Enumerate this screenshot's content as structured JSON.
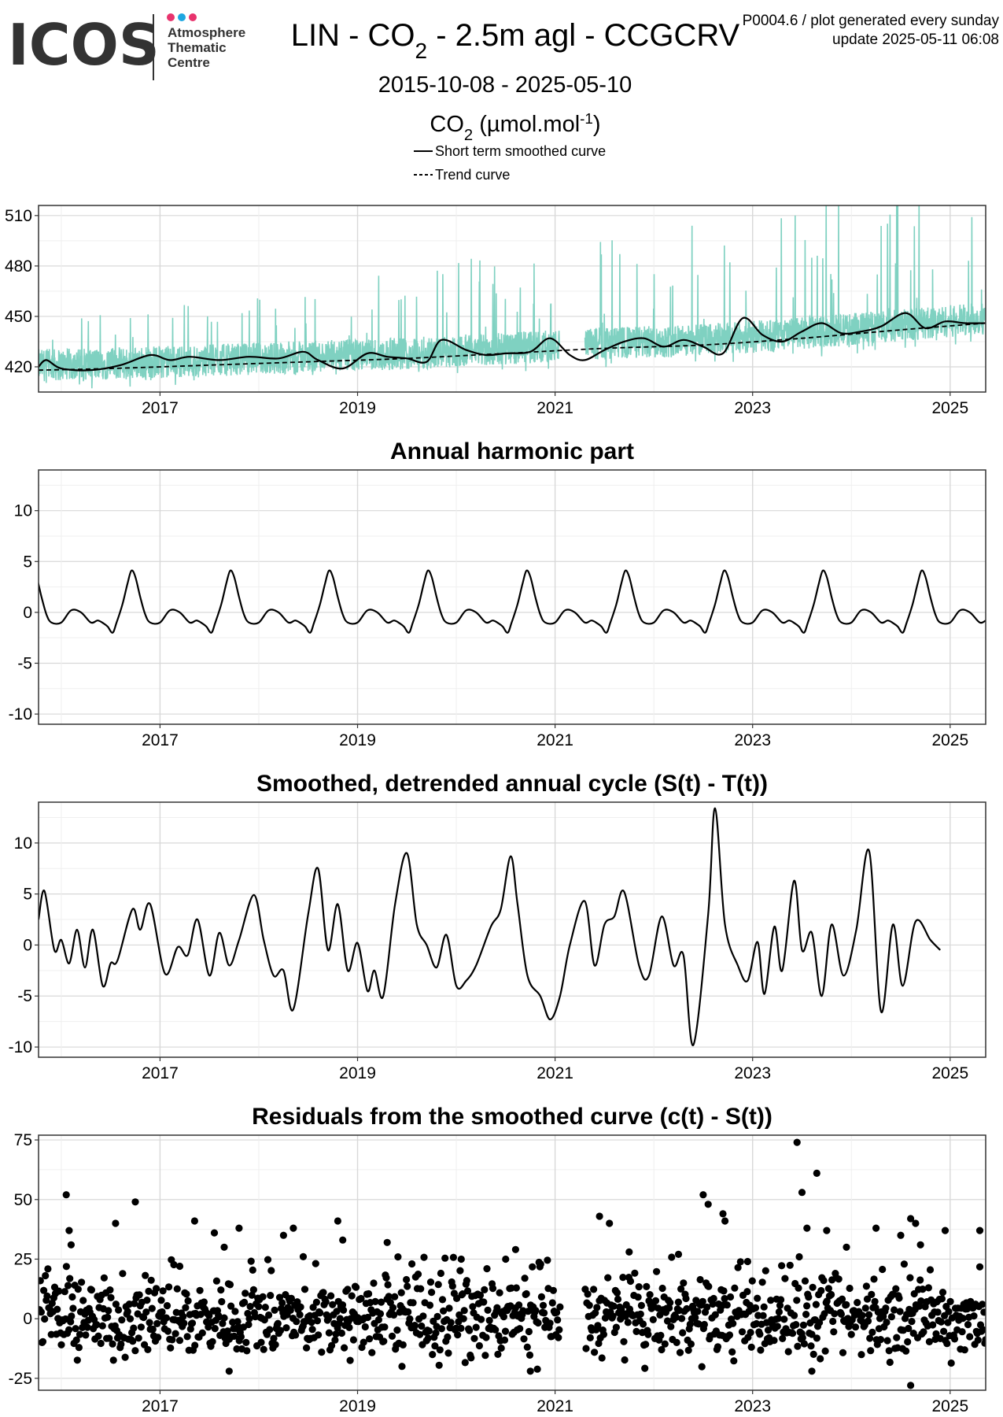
{
  "header": {
    "logo_text": "ICOS",
    "logo_sub": [
      "Atmosphere",
      "Thematic",
      "Centre"
    ],
    "logo_dot_colors": [
      "#e8336d",
      "#1ea7e1",
      "#e8336d"
    ],
    "title": "LIN - CO2 - 2.5m agl - CCGCRV",
    "date_range": "2015-10-08 - 2025-05-10",
    "meta_line1": "P0004.6 / plot generated every sunday",
    "meta_line2": "update  2025-05-11 06:08",
    "units": "CO2 (µmol.mol-1)",
    "legend": [
      "Short term smoothed curve",
      "Trend curve"
    ]
  },
  "colors": {
    "raw_series": "#7fd1c1",
    "curve": "#000000",
    "grid": "#d8d8d8",
    "grid_minor": "#efefef",
    "panel_border": "#333333"
  },
  "chart_data": [
    {
      "type": "line",
      "id": "co2",
      "title": "",
      "x_range": [
        2015.77,
        2025.36
      ],
      "ylim": [
        405,
        516
      ],
      "yticks": [
        420,
        450,
        480,
        510
      ],
      "xticks": [
        2017,
        2019,
        2021,
        2023,
        2025
      ],
      "grid": true,
      "series": [
        {
          "name": "Raw CO2",
          "style": "raw",
          "data_gap": [
            2021.05,
            2021.3
          ],
          "baseline": [
            [
              2015.77,
              418
            ],
            [
              2016.5,
              419
            ],
            [
              2017.5,
              421
            ],
            [
              2018.5,
              423
            ],
            [
              2019.5,
              425
            ],
            [
              2020.5,
              428
            ],
            [
              2021.5,
              431
            ],
            [
              2022.5,
              433
            ],
            [
              2023.5,
              437
            ],
            [
              2024.5,
              442
            ],
            [
              2025.36,
              446
            ]
          ],
          "amplitude": 12,
          "spike_max": 95
        },
        {
          "name": "Short term smoothed curve",
          "style": "solid",
          "points": [
            [
              2015.77,
              420
            ],
            [
              2015.85,
              424
            ],
            [
              2016.0,
              419
            ],
            [
              2016.3,
              418
            ],
            [
              2016.6,
              421
            ],
            [
              2016.9,
              427
            ],
            [
              2017.1,
              424
            ],
            [
              2017.3,
              426
            ],
            [
              2017.6,
              424
            ],
            [
              2017.9,
              426
            ],
            [
              2018.2,
              425
            ],
            [
              2018.45,
              429
            ],
            [
              2018.6,
              424
            ],
            [
              2018.85,
              419
            ],
            [
              2019.1,
              428
            ],
            [
              2019.3,
              426
            ],
            [
              2019.5,
              425
            ],
            [
              2019.7,
              423
            ],
            [
              2019.85,
              436
            ],
            [
              2020.1,
              430
            ],
            [
              2020.3,
              427
            ],
            [
              2020.5,
              428
            ],
            [
              2020.75,
              429
            ],
            [
              2020.95,
              437
            ],
            [
              2021.15,
              427
            ],
            [
              2021.3,
              424
            ],
            [
              2021.5,
              430
            ],
            [
              2021.7,
              435
            ],
            [
              2021.9,
              437
            ],
            [
              2022.1,
              432
            ],
            [
              2022.3,
              436
            ],
            [
              2022.5,
              432
            ],
            [
              2022.7,
              428
            ],
            [
              2022.9,
              449
            ],
            [
              2023.1,
              439
            ],
            [
              2023.3,
              435
            ],
            [
              2023.5,
              441
            ],
            [
              2023.7,
              446
            ],
            [
              2023.9,
              440
            ],
            [
              2024.1,
              441
            ],
            [
              2024.3,
              444
            ],
            [
              2024.55,
              452
            ],
            [
              2024.75,
              443
            ],
            [
              2024.95,
              447
            ],
            [
              2025.15,
              446
            ],
            [
              2025.36,
              446
            ]
          ]
        },
        {
          "name": "Trend curve",
          "style": "dashed",
          "points": [
            [
              2015.77,
              418
            ],
            [
              2016.5,
              419
            ],
            [
              2017.5,
              421
            ],
            [
              2018.5,
              423
            ],
            [
              2019.5,
              425
            ],
            [
              2020.5,
              428
            ],
            [
              2021.5,
              431
            ],
            [
              2022.5,
              433
            ],
            [
              2023.5,
              437
            ],
            [
              2024.5,
              442
            ],
            [
              2025.36,
              446
            ]
          ]
        }
      ]
    },
    {
      "type": "line",
      "id": "harmonic",
      "title": "Annual harmonic part",
      "x_range": [
        2015.77,
        2025.36
      ],
      "ylim": [
        -11,
        14
      ],
      "yticks": [
        -10,
        -5,
        0,
        5,
        10
      ],
      "xticks": [
        2017,
        2019,
        2021,
        2023,
        2025
      ],
      "grid": true,
      "series": [
        {
          "name": "",
          "style": "solid",
          "cycle": [
            [
              0.0,
              -1.0
            ],
            [
              0.1,
              0.2
            ],
            [
              0.2,
              0.0
            ],
            [
              0.3,
              -1.0
            ],
            [
              0.37,
              -0.8
            ],
            [
              0.43,
              -1.1
            ],
            [
              0.47,
              -1.4
            ],
            [
              0.52,
              -2.0
            ],
            [
              0.56,
              -1.0
            ],
            [
              0.62,
              0.8
            ],
            [
              0.67,
              2.8
            ],
            [
              0.71,
              4.1
            ],
            [
              0.75,
              3.5
            ],
            [
              0.8,
              1.5
            ],
            [
              0.85,
              -0.2
            ],
            [
              0.9,
              -1.0
            ],
            [
              1.0,
              -1.0
            ]
          ]
        }
      ]
    },
    {
      "type": "line",
      "id": "detrended",
      "title": "Smoothed, detrended annual cycle (S(t) - T(t))",
      "x_range": [
        2015.77,
        2025.36
      ],
      "ylim": [
        -11,
        14
      ],
      "yticks": [
        -10,
        -5,
        0,
        5,
        10
      ],
      "xticks": [
        2017,
        2019,
        2021,
        2023,
        2025
      ],
      "grid": true,
      "series": [
        {
          "name": "",
          "style": "solid",
          "points": [
            [
              2015.77,
              2.5
            ],
            [
              2015.83,
              5.3
            ],
            [
              2015.93,
              -0.5
            ],
            [
              2016.0,
              0.5
            ],
            [
              2016.08,
              -1.8
            ],
            [
              2016.16,
              1.5
            ],
            [
              2016.24,
              -2.2
            ],
            [
              2016.32,
              1.5
            ],
            [
              2016.42,
              -4.0
            ],
            [
              2016.5,
              -1.8
            ],
            [
              2016.57,
              -1.5
            ],
            [
              2016.72,
              3.5
            ],
            [
              2016.8,
              1.5
            ],
            [
              2016.9,
              4.0
            ],
            [
              2017.05,
              -2.8
            ],
            [
              2017.18,
              -0.2
            ],
            [
              2017.28,
              -1.0
            ],
            [
              2017.38,
              2.5
            ],
            [
              2017.5,
              -3.0
            ],
            [
              2017.6,
              1.2
            ],
            [
              2017.7,
              -2.0
            ],
            [
              2017.8,
              0.5
            ],
            [
              2017.95,
              4.9
            ],
            [
              2018.05,
              0.5
            ],
            [
              2018.15,
              -3.0
            ],
            [
              2018.25,
              -2.5
            ],
            [
              2018.35,
              -6.3
            ],
            [
              2018.5,
              3.0
            ],
            [
              2018.6,
              7.5
            ],
            [
              2018.7,
              -0.5
            ],
            [
              2018.8,
              4.0
            ],
            [
              2018.9,
              -2.5
            ],
            [
              2019.0,
              0.2
            ],
            [
              2019.1,
              -4.5
            ],
            [
              2019.17,
              -2.5
            ],
            [
              2019.26,
              -5.0
            ],
            [
              2019.38,
              4.0
            ],
            [
              2019.5,
              9.0
            ],
            [
              2019.6,
              2.0
            ],
            [
              2019.7,
              0.0
            ],
            [
              2019.8,
              -2.2
            ],
            [
              2019.9,
              1.0
            ],
            [
              2020.0,
              -4.0
            ],
            [
              2020.1,
              -3.5
            ],
            [
              2020.2,
              -2.0
            ],
            [
              2020.35,
              1.8
            ],
            [
              2020.45,
              3.5
            ],
            [
              2020.55,
              8.7
            ],
            [
              2020.62,
              4.0
            ],
            [
              2020.72,
              -3.0
            ],
            [
              2020.85,
              -5.0
            ],
            [
              2020.95,
              -7.3
            ],
            [
              2021.05,
              -5.0
            ],
            [
              2021.15,
              0.0
            ],
            [
              2021.3,
              4.3
            ],
            [
              2021.4,
              -2.0
            ],
            [
              2021.5,
              2.0
            ],
            [
              2021.6,
              2.8
            ],
            [
              2021.7,
              5.2
            ],
            [
              2021.85,
              -2.0
            ],
            [
              2021.95,
              -3.0
            ],
            [
              2022.08,
              2.8
            ],
            [
              2022.2,
              -2.0
            ],
            [
              2022.3,
              -1.0
            ],
            [
              2022.4,
              -9.8
            ],
            [
              2022.55,
              3.0
            ],
            [
              2022.62,
              13.4
            ],
            [
              2022.72,
              2.0
            ],
            [
              2022.85,
              -2.0
            ],
            [
              2022.95,
              -3.5
            ],
            [
              2023.05,
              0.3
            ],
            [
              2023.12,
              -4.8
            ],
            [
              2023.22,
              1.8
            ],
            [
              2023.3,
              -2.5
            ],
            [
              2023.42,
              6.3
            ],
            [
              2023.5,
              -0.5
            ],
            [
              2023.6,
              1.2
            ],
            [
              2023.7,
              -5.0
            ],
            [
              2023.8,
              2.0
            ],
            [
              2023.92,
              -3.0
            ],
            [
              2024.05,
              1.5
            ],
            [
              2024.18,
              9.2
            ],
            [
              2024.3,
              -6.5
            ],
            [
              2024.42,
              2.0
            ],
            [
              2024.52,
              -4.0
            ],
            [
              2024.65,
              2.3
            ],
            [
              2024.8,
              0.5
            ],
            [
              2024.9,
              -0.5
            ]
          ]
        }
      ]
    },
    {
      "type": "scatter",
      "id": "residuals",
      "title": "Residuals from the smoothed curve (c(t) - S(t))",
      "x_range": [
        2015.77,
        2025.36
      ],
      "ylim": [
        -30,
        77
      ],
      "yticks": [
        -25,
        0,
        25,
        50,
        75
      ],
      "xticks": [
        2017,
        2019,
        2021,
        2023,
        2025
      ],
      "grid": true,
      "series": [
        {
          "name": "",
          "style": "points",
          "data_gap": [
            2021.05,
            2021.3
          ],
          "spread": 10,
          "outliers": [
            [
              2016.05,
              52
            ],
            [
              2016.08,
              37
            ],
            [
              2016.1,
              31
            ],
            [
              2016.55,
              40
            ],
            [
              2016.75,
              49
            ],
            [
              2017.2,
              22
            ],
            [
              2017.35,
              41
            ],
            [
              2017.55,
              36
            ],
            [
              2017.65,
              30
            ],
            [
              2017.8,
              38
            ],
            [
              2018.25,
              35
            ],
            [
              2018.35,
              38
            ],
            [
              2018.45,
              26
            ],
            [
              2018.8,
              41
            ],
            [
              2018.85,
              33
            ],
            [
              2019.3,
              32
            ],
            [
              2019.55,
              23
            ],
            [
              2020.05,
              25
            ],
            [
              2020.5,
              25
            ],
            [
              2020.6,
              29
            ],
            [
              2021.45,
              43
            ],
            [
              2021.55,
              40
            ],
            [
              2021.75,
              28
            ],
            [
              2022.25,
              27
            ],
            [
              2022.5,
              52
            ],
            [
              2022.55,
              48
            ],
            [
              2022.7,
              44
            ],
            [
              2022.72,
              41
            ],
            [
              2022.95,
              24
            ],
            [
              2023.45,
              74
            ],
            [
              2023.5,
              53
            ],
            [
              2023.55,
              38
            ],
            [
              2023.65,
              61
            ],
            [
              2023.75,
              37
            ],
            [
              2023.95,
              30
            ],
            [
              2024.25,
              38
            ],
            [
              2024.5,
              35
            ],
            [
              2024.6,
              42
            ],
            [
              2024.65,
              40
            ],
            [
              2024.7,
              31
            ],
            [
              2024.95,
              37
            ],
            [
              2025.3,
              37
            ],
            [
              2024.6,
              -28
            ],
            [
              2023.6,
              -22
            ],
            [
              2020.75,
              -22
            ],
            [
              2019.45,
              -20
            ],
            [
              2017.7,
              -22
            ]
          ]
        }
      ]
    }
  ]
}
